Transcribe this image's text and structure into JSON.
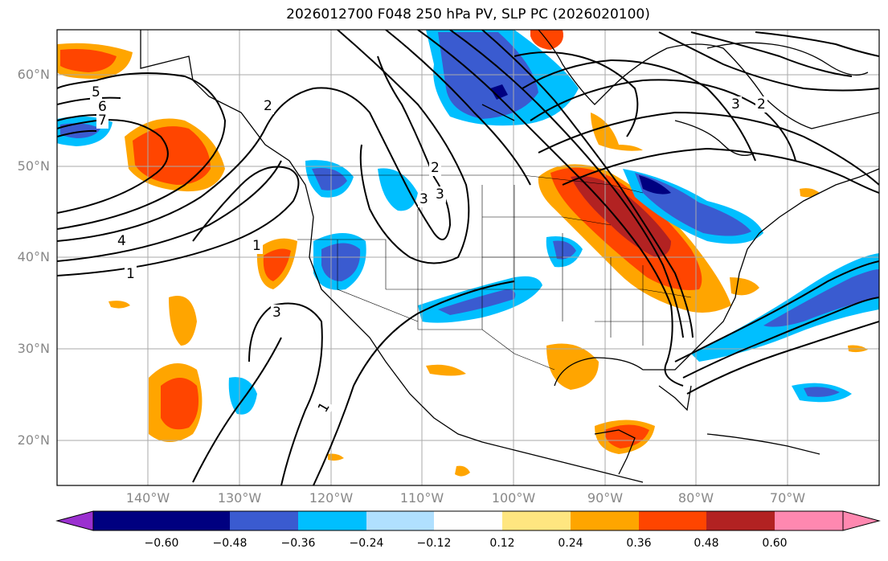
{
  "title": "2026012700 F048 250 hPa PV, SLP PC (2026020100)",
  "lat_labels": [
    "60°N",
    "50°N",
    "40°N",
    "30°N",
    "20°N"
  ],
  "lon_labels": [
    "140°W",
    "130°W",
    "120°W",
    "110°W",
    "100°W",
    "90°W",
    "80°W",
    "70°W"
  ],
  "colorbar": {
    "ticks": [
      "−0.60",
      "−0.48",
      "−0.36",
      "−0.24",
      "−0.12",
      "0.12",
      "0.24",
      "0.36",
      "0.48",
      "0.60"
    ],
    "colors": [
      "#9b30d0",
      "#000080",
      "#3a5bd0",
      "#00bfff",
      "#b0e0ff",
      "#ffffff",
      "#ffe680",
      "#ffa500",
      "#ff4500",
      "#b22222",
      "#ff88b0"
    ]
  },
  "contour_labels": [
    "1",
    "1",
    "2",
    "2",
    "3",
    "3",
    "4",
    "5",
    "6",
    "7",
    "1",
    "3",
    "2",
    "3"
  ],
  "map_features": {
    "shading": "250 hPa PV anomaly",
    "contours": "SLP PC"
  }
}
